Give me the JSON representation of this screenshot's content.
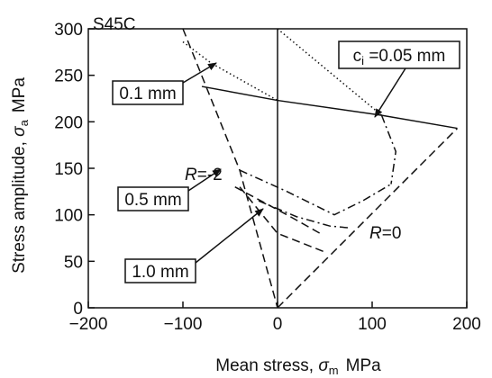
{
  "chart_data": {
    "type": "line",
    "title": "S45C",
    "xlabel_text": "Mean stress, ",
    "xlabel_symbol": "σ",
    "xlabel_sub": "m",
    "xlabel_unit": "MPa",
    "ylabel_text": "Stress amplitude, ",
    "ylabel_symbol": "σ",
    "ylabel_sub": "a",
    "ylabel_unit": "MPa",
    "xlim": [
      -200,
      200
    ],
    "ylim": [
      0,
      300
    ],
    "xticks": [
      -200,
      -100,
      0,
      100,
      200
    ],
    "yticks": [
      0,
      50,
      100,
      150,
      200,
      250,
      300
    ],
    "grid": false,
    "series": [
      {
        "name": "",
        "style": "solid",
        "x": [
          -80,
          0,
          110,
          190
        ],
        "y": [
          238,
          223,
          207,
          193
        ]
      },
      {
        "name": "",
        "style": "dotted",
        "x": [
          -100,
          -70,
          0
        ],
        "y": [
          286,
          263,
          223
        ]
      },
      {
        "name": "",
        "style": "dotted",
        "x": [
          0,
          110
        ],
        "y": [
          300,
          207
        ]
      },
      {
        "name": "",
        "style": "dashdot",
        "x": [
          110,
          125,
          120
        ],
        "y": [
          207,
          168,
          133
        ]
      },
      {
        "name": "",
        "style": "dashdot",
        "x": [
          -40,
          10,
          60,
          90,
          120
        ],
        "y": [
          148,
          125,
          100,
          115,
          133
        ]
      },
      {
        "name": "",
        "style": "dashdot",
        "x": [
          -20,
          20,
          55,
          75
        ],
        "y": [
          115,
          98,
          88,
          86
        ]
      },
      {
        "name": "",
        "style": "dashed",
        "x": [
          -100,
          -40,
          0
        ],
        "y": [
          300,
          148,
          0
        ]
      },
      {
        "name": "",
        "style": "dashed",
        "x": [
          0,
          190
        ],
        "y": [
          0,
          193
        ]
      },
      {
        "name": "",
        "style": "dashed",
        "x": [
          -45,
          10,
          45
        ],
        "y": [
          130,
          100,
          80
        ]
      },
      {
        "name": "",
        "style": "dashed",
        "x": [
          -40,
          0,
          50
        ],
        "y": [
          130,
          80,
          60
        ]
      }
    ],
    "annotations": {
      "r_minus2_prefix": "R",
      "r_minus2_value": "=-2",
      "r_zero_prefix": "R",
      "r_zero_value": "=0",
      "label_01": "0.1 mm",
      "label_05": "0.5 mm",
      "label_10": "1.0 mm",
      "label_ci_prefix": "c",
      "label_ci_sub": "i",
      "label_ci_value": " =0.05 mm"
    }
  }
}
